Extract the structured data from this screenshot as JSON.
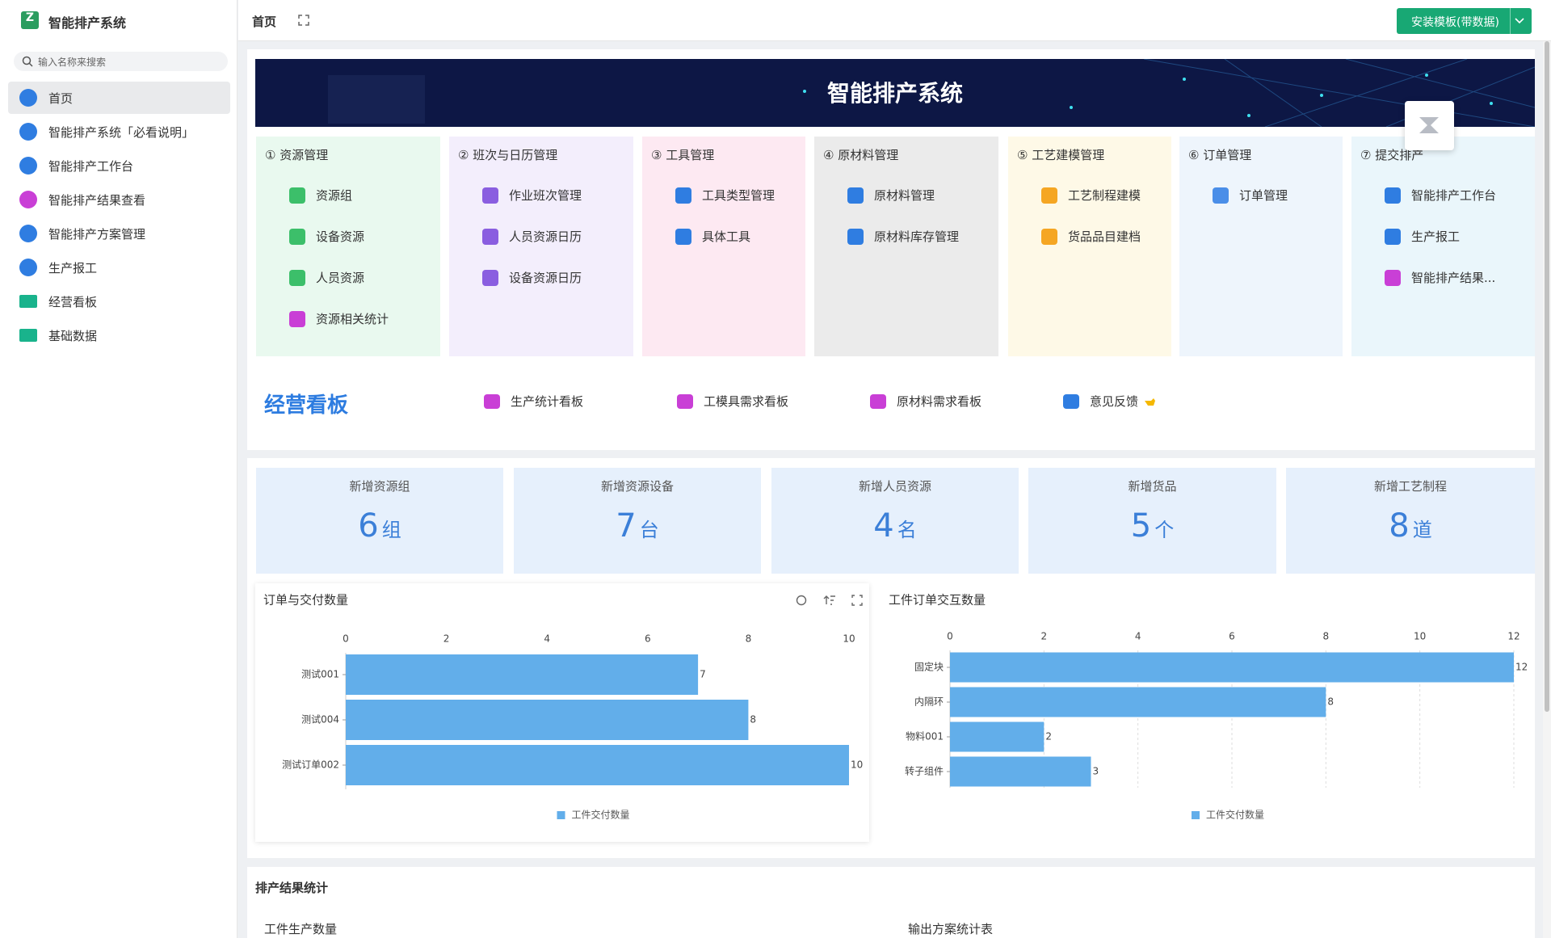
{
  "logo": {
    "title": "智能排产系统"
  },
  "search": {
    "placeholder": "输入名称来搜索"
  },
  "menu": [
    {
      "label": "首页",
      "color": "#2f7de1"
    },
    {
      "label": "智能排产系统「必看说明」",
      "color": "#2f7de1"
    },
    {
      "label": "智能排产工作台",
      "color": "#2f7de1"
    },
    {
      "label": "智能排产结果查看",
      "color": "#c93fd6"
    },
    {
      "label": "智能排产方案管理",
      "color": "#2f7de1"
    },
    {
      "label": "生产报工",
      "color": "#2f7de1"
    },
    {
      "label": "经营看板",
      "color": "#19b38c"
    },
    {
      "label": "基础数据",
      "color": "#19b38c"
    }
  ],
  "header": {
    "tab": "首页",
    "button": "安装模板(带数据)"
  },
  "banner": {
    "title": "智能排产系统"
  },
  "modules": [
    {
      "title": "① 资源管理",
      "bg": "#e9f9ef",
      "items": [
        {
          "label": "资源组",
          "color": "#3cbf6a"
        },
        {
          "label": "设备资源",
          "color": "#3cbf6a"
        },
        {
          "label": "人员资源",
          "color": "#3cbf6a"
        },
        {
          "label": "资源相关统计",
          "color": "#c93fd6"
        }
      ]
    },
    {
      "title": "② 班次与日历管理",
      "bg": "#f3eefc",
      "items": [
        {
          "label": "作业班次管理",
          "color": "#8a5ee0"
        },
        {
          "label": "人员资源日历",
          "color": "#8a5ee0"
        },
        {
          "label": "设备资源日历",
          "color": "#8a5ee0"
        }
      ]
    },
    {
      "title": "③ 工具管理",
      "bg": "#fde9f2",
      "items": [
        {
          "label": "工具类型管理",
          "color": "#2f7de1"
        },
        {
          "label": "具体工具",
          "color": "#2f7de1"
        }
      ]
    },
    {
      "title": "④ 原材料管理",
      "bg": "#ebebeb",
      "items": [
        {
          "label": "原材料管理",
          "color": "#2f7de1"
        },
        {
          "label": "原材料库存管理",
          "color": "#2f7de1"
        }
      ]
    },
    {
      "title": "⑤ 工艺建模管理",
      "bg": "#fef9e7",
      "items": [
        {
          "label": "工艺制程建模",
          "color": "#f5a623"
        },
        {
          "label": "货品品目建档",
          "color": "#f5a623"
        }
      ]
    },
    {
      "title": "⑥ 订单管理",
      "bg": "#eef5fc",
      "items": [
        {
          "label": "订单管理",
          "color": "#4a8ee8"
        }
      ]
    },
    {
      "title": "⑦ 提交排产",
      "bg": "#eaf6fb",
      "items": [
        {
          "label": "智能排产工作台",
          "color": "#2f7de1"
        },
        {
          "label": "生产报工",
          "color": "#2f7de1"
        },
        {
          "label": "智能排产结果...",
          "color": "#c93fd6"
        }
      ]
    }
  ],
  "board": {
    "title": "经营看板",
    "links": [
      {
        "label": "生产统计看板",
        "color": "#c93fd6"
      },
      {
        "label": "工模具需求看板",
        "color": "#c93fd6"
      },
      {
        "label": "原材料需求看板",
        "color": "#c93fd6"
      },
      {
        "label": "意见反馈",
        "color": "#2f7de1"
      }
    ]
  },
  "stats": [
    {
      "label": "新增资源组",
      "value": 6,
      "unit": "组"
    },
    {
      "label": "新增资源设备",
      "value": 7,
      "unit": "台"
    },
    {
      "label": "新增人员资源",
      "value": 4,
      "unit": "名"
    },
    {
      "label": "新增货品",
      "value": 5,
      "unit": "个"
    },
    {
      "label": "新增工艺制程",
      "value": 8,
      "unit": "道"
    }
  ],
  "charts": [
    {
      "type": "bar",
      "orientation": "horizontal",
      "title": "订单与交付数量",
      "categories": [
        "测试001",
        "测试004",
        "测试订单002"
      ],
      "series": [
        {
          "name": "工件交付数量",
          "color": "#62aeea",
          "values": [
            7,
            8,
            10
          ]
        }
      ],
      "xlim": [
        0,
        10
      ],
      "xticks": [
        0,
        2,
        4,
        6,
        8,
        10
      ],
      "grid": false
    },
    {
      "type": "bar",
      "orientation": "horizontal",
      "title": "工件订单交互数量",
      "categories": [
        "固定块",
        "内隔环",
        "物料001",
        "转子组件"
      ],
      "series": [
        {
          "name": "工件交付数量",
          "color": "#62aeea",
          "values": [
            12,
            8,
            2,
            3
          ]
        }
      ],
      "xlim": [
        0,
        12
      ],
      "xticks": [
        0,
        2,
        4,
        6,
        8,
        10,
        12
      ],
      "grid": true
    }
  ],
  "results": {
    "title": "排产结果统计",
    "left": "工件生产数量",
    "right": "输出方案统计表"
  }
}
